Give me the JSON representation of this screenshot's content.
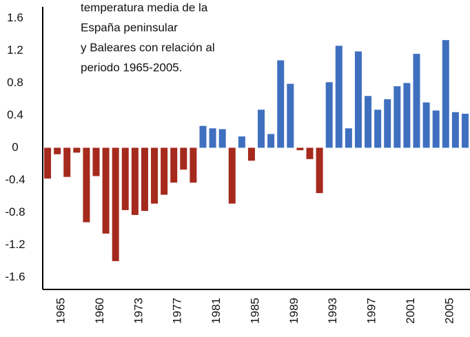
{
  "chart_data": {
    "type": "bar",
    "annotations": [
      "temperatura media de la",
      "España peninsular",
      "y Baleares con relación al",
      "periodo 1965-2005."
    ],
    "categories": [
      null,
      "1965",
      null,
      null,
      null,
      "1960",
      null,
      null,
      null,
      "1973",
      null,
      null,
      null,
      "1977",
      null,
      null,
      null,
      "1981",
      null,
      null,
      null,
      "1985",
      null,
      null,
      null,
      "1989",
      null,
      null,
      null,
      "1993",
      null,
      null,
      null,
      "1997",
      null,
      null,
      null,
      "2001",
      null,
      null,
      null,
      "2005",
      null,
      null
    ],
    "values": [
      -0.38,
      -0.08,
      -0.36,
      -0.06,
      -0.92,
      -0.35,
      -1.06,
      -1.4,
      -0.77,
      -0.83,
      -0.78,
      -0.69,
      -0.58,
      -0.43,
      -0.27,
      -0.43,
      0.27,
      0.24,
      0.23,
      -0.69,
      0.14,
      -0.16,
      0.47,
      0.17,
      1.08,
      0.79,
      -0.03,
      -0.14,
      -0.56,
      0.81,
      1.26,
      0.24,
      1.19,
      0.64,
      0.47,
      0.6,
      0.76,
      0.8,
      1.16,
      0.56,
      0.46,
      1.33,
      0.44,
      0.42
    ],
    "positive_color": "#3f6fbf",
    "negative_color": "#a52a1d",
    "annotation_color": "#3f6fbf",
    "ylim": [
      -1.75,
      1.74
    ],
    "yticks": [
      1.6,
      1.2,
      0.8,
      0.4,
      0,
      -0.4,
      -0.8,
      -1.2,
      -1.6
    ],
    "grid": false
  }
}
